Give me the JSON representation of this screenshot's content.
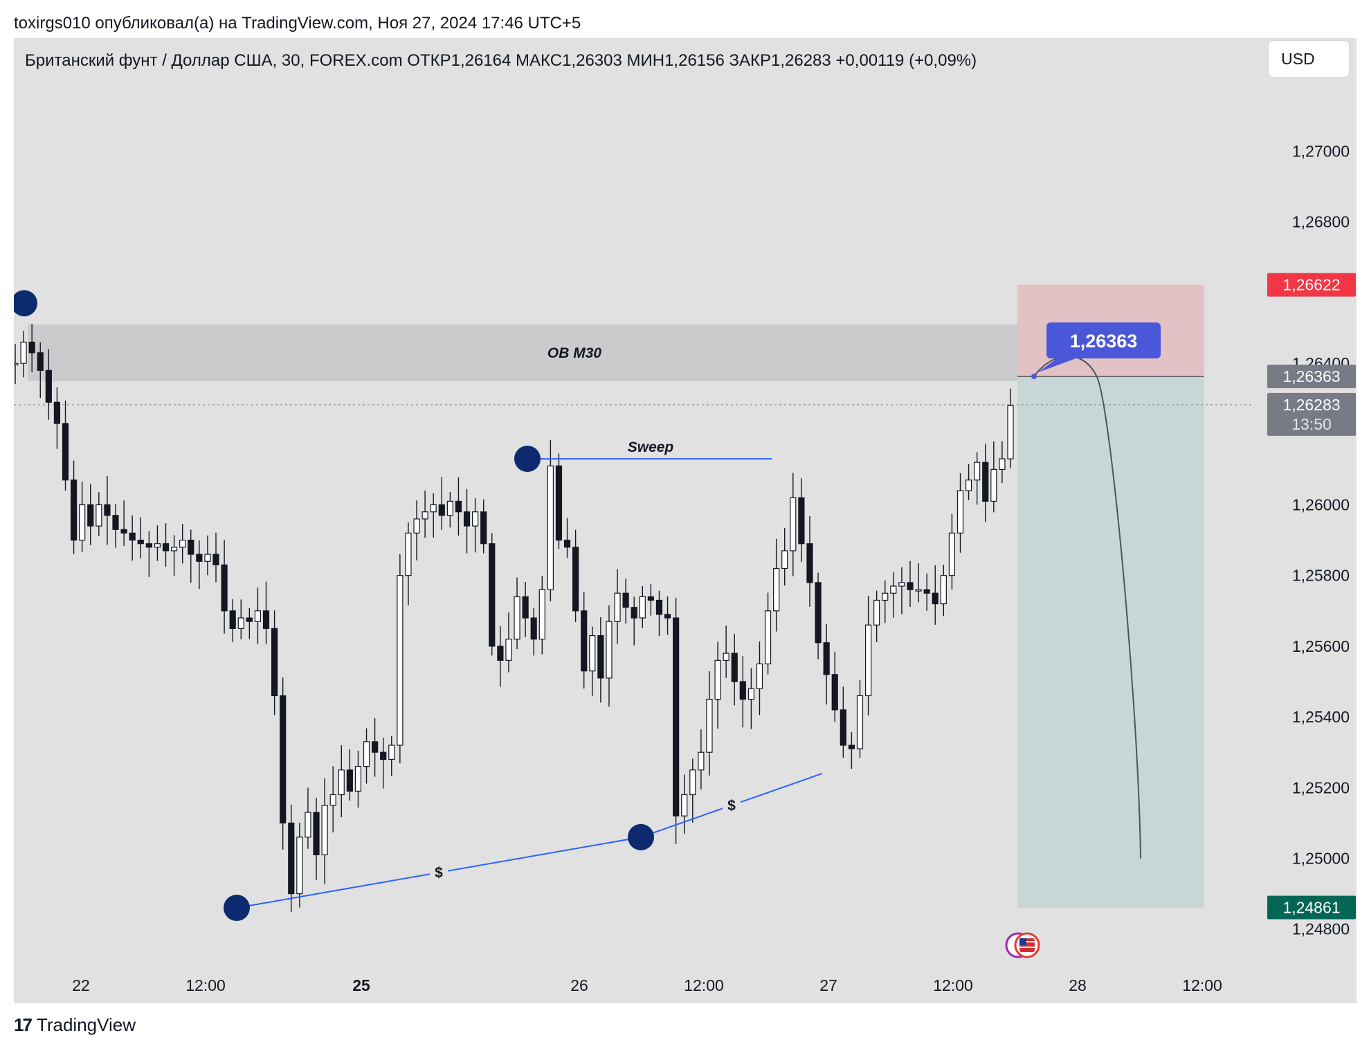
{
  "header": {
    "publisher": "toxirgs010 опубликовал(а) на TradingView.com, Ноя 27, 2024 17:46 UTC+5"
  },
  "symbol": {
    "text": "Британский фунт / Доллар США, 30, FOREX.com  ОТКР1,26164  МАКС1,26303  МИН1,26156  ЗАКР1,26283  +0,00119 (+0,09%)"
  },
  "currency_label": "USD",
  "footer": {
    "brand": "TradingView",
    "logo_text": "17"
  },
  "colors": {
    "background": "#e1e1e1",
    "ob_zone": "#cbcbcd",
    "stop_zone": "#e3c2c6",
    "target_zone": "#c8d6d5",
    "pivot": "#0c2a6d",
    "line_blue": "#2962ff",
    "label_box": "#4a57d8",
    "red_tag": "#f23645",
    "green_tag": "#056656",
    "grey_tag": "#787b86"
  },
  "chart_data": {
    "type": "candlestick",
    "y_axis": {
      "ticks": [
        "1,27000",
        "1,26800",
        "1,26400",
        "1,26000",
        "1,25800",
        "1,25600",
        "1,25400",
        "1,25200",
        "1,25000",
        "1,24800"
      ],
      "tick_values": [
        1.27,
        1.268,
        1.264,
        1.26,
        1.258,
        1.256,
        1.254,
        1.252,
        1.25,
        1.248
      ],
      "range": [
        1.2459,
        1.2732
      ]
    },
    "x_axis": {
      "ticks": [
        {
          "label": "22",
          "bold": false
        },
        {
          "label": "12:00",
          "bold": false
        },
        {
          "label": "25",
          "bold": true
        },
        {
          "label": "26",
          "bold": false
        },
        {
          "label": "12:00",
          "bold": false
        },
        {
          "label": "27",
          "bold": false
        },
        {
          "label": "12:00",
          "bold": false
        },
        {
          "label": "28",
          "bold": false
        },
        {
          "label": "12:00",
          "bold": false
        }
      ]
    },
    "price_tags": {
      "stop": "1,26622",
      "entry": "1,26363",
      "last": "1,26283",
      "countdown": "13:50",
      "target": "1,24861"
    },
    "annotations": {
      "ob": "OB M30",
      "sweep": "Sweep",
      "dollar_1": "$",
      "dollar_2": "$",
      "entry_bubble": "1,26363"
    },
    "levels": {
      "ob_top": 1.2651,
      "ob_bottom": 1.2635,
      "stop": 1.26622,
      "entry": 1.26363,
      "last": 1.26283,
      "target": 1.24861,
      "sweep": 1.2613
    },
    "pivots": [
      {
        "name": "top-left",
        "price": 1.2657
      },
      {
        "name": "sweep-high",
        "price": 1.2613
      },
      {
        "name": "low-1",
        "price": 1.2486
      },
      {
        "name": "low-2",
        "price": 1.2506
      }
    ],
    "price_path": [
      1.264,
      1.2646,
      1.2643,
      1.2638,
      1.2629,
      1.2623,
      1.2607,
      1.259,
      1.26,
      1.2594,
      1.26,
      1.2597,
      1.2593,
      1.2592,
      1.259,
      1.2589,
      1.2588,
      1.2589,
      1.2587,
      1.2588,
      1.259,
      1.2586,
      1.2584,
      1.2586,
      1.2583,
      1.257,
      1.2565,
      1.2568,
      1.2567,
      1.257,
      1.2565,
      1.2546,
      1.251,
      1.249,
      1.2506,
      1.2513,
      1.2501,
      1.2515,
      1.2518,
      1.2525,
      1.2519,
      1.2526,
      1.2533,
      1.253,
      1.2528,
      1.2532,
      1.258,
      1.2592,
      1.2596,
      1.2598,
      1.26,
      1.2597,
      1.2601,
      1.2598,
      1.2594,
      1.2598,
      1.2589,
      1.256,
      1.2556,
      1.2562,
      1.2574,
      1.2568,
      1.2562,
      1.2576,
      1.2611,
      1.259,
      1.2588,
      1.257,
      1.2553,
      1.2563,
      1.2551,
      1.2567,
      1.2575,
      1.2571,
      1.2568,
      1.2574,
      1.2573,
      1.2569,
      1.2568,
      1.2512,
      1.2518,
      1.2525,
      1.253,
      1.2545,
      1.2556,
      1.2558,
      1.255,
      1.2545,
      1.2548,
      1.2555,
      1.257,
      1.2582,
      1.2587,
      1.2602,
      1.2589,
      1.2578,
      1.2561,
      1.2552,
      1.2542,
      1.2532,
      1.2531,
      1.2546,
      1.2566,
      1.2573,
      1.2575,
      1.2577,
      1.2578,
      1.2576,
      1.2576,
      1.2575,
      1.2572,
      1.258,
      1.2592,
      1.2604,
      1.2607,
      1.2612,
      1.2601,
      1.261,
      1.2613,
      1.2628
    ]
  }
}
